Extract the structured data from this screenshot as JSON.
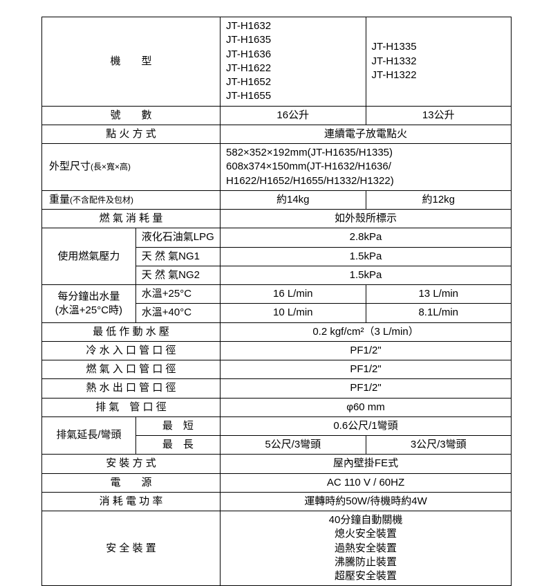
{
  "colors": {
    "border": "#000000",
    "bg": "#ffffff",
    "text": "#000000"
  },
  "font": {
    "size_pt": 15,
    "family": "Microsoft JhengHei"
  },
  "col_widths_pct": [
    20,
    18,
    31,
    31
  ],
  "header": {
    "model_label": "機　　型",
    "models_col1": "JT-H1632\nJT-H1635\nJT-H1636\nJT-H1622\nJT-H1652\nJT-H1655",
    "models_col2": "JT-H1335\nJT-H1332\nJT-H1322"
  },
  "rows": {
    "capacity": {
      "label": "號　　數",
      "v1": "16公升",
      "v2": "13公升"
    },
    "ignition": {
      "label": "點 火 方 式",
      "v": "連續電子放電點火"
    },
    "dimensions": {
      "label": "外型尺寸",
      "label_note": "(長×寬×高)",
      "v": "582×352×192mm(JT-H1635/H1335)\n608x374×150mm(JT-H1632/H1636/\nH1622/H1652/H1655/H1332/H1322)"
    },
    "weight": {
      "label": "重量",
      "label_note": "(不含配件及包材)",
      "v1": "約14kg",
      "v2": "約12kg"
    },
    "gas_consumption": {
      "label": "燃 氣 消 耗 量",
      "v": "如外殼所標示"
    },
    "gas_pressure": {
      "label": "使用燃氣壓力",
      "r1": {
        "k": "液化石油氣LPG",
        "v": "2.8kPa"
      },
      "r2": {
        "k": "天 然 氣NG1",
        "v": "1.5kPa"
      },
      "r3": {
        "k": "天 然 氣NG2",
        "v": "1.5kPa"
      }
    },
    "flow_rate": {
      "label1": "每分鐘出水量",
      "label2": "(水溫+25°C時)",
      "r1": {
        "k": "水溫+25°C",
        "v1": "16 L/min",
        "v2": "13 L/min"
      },
      "r2": {
        "k": "水溫+40°C",
        "v1": "10 L/min",
        "v2": "8.1L/min"
      }
    },
    "min_pressure": {
      "label": "最 低 作 動 水 壓",
      "v": "0.2 kgf/cm²（3 L/min）"
    },
    "cold_inlet": {
      "label": "冷 水 入 口 管 口 徑",
      "v": "PF1/2\""
    },
    "gas_inlet": {
      "label": "燃 氣 入 口 管 口 徑",
      "v": "PF1/2\""
    },
    "hot_outlet": {
      "label": "熱 水 出 口 管 口 徑",
      "v": "PF1/2\""
    },
    "exhaust_dia": {
      "label": "排 氣　管 口 徑",
      "v": "φ60 mm"
    },
    "exhaust_ext": {
      "label": "排氣延長/彎頭",
      "r1": {
        "k": "最　短",
        "v": "0.6公尺/1彎頭"
      },
      "r2": {
        "k": "最　長",
        "v1": "5公尺/3彎頭",
        "v2": "3公尺/3彎頭"
      }
    },
    "install": {
      "label": "安 裝 方 式",
      "v": "屋內壁掛FE式"
    },
    "power": {
      "label": "電　　源",
      "v": "AC 110 V / 60HZ"
    },
    "watt": {
      "label": "消 耗 電 功 率",
      "v": "運轉時約50W/待機時約4W"
    },
    "safety": {
      "label": "安 全 裝 置",
      "v": "40分鐘自動關機\n熄火安全裝置\n過熱安全裝置\n沸騰防止裝置\n超壓安全裝置"
    }
  }
}
